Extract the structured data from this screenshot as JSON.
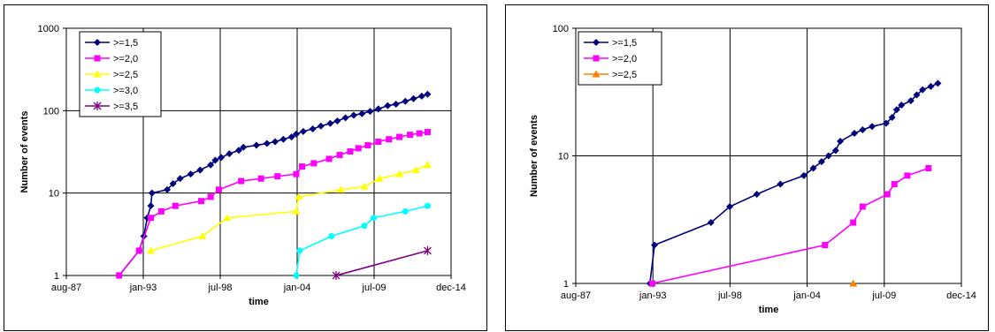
{
  "chart_data": [
    {
      "type": "line",
      "xlabel": "time",
      "ylabel": "Number of events",
      "yscale": "log",
      "ylim": [
        1,
        1000
      ],
      "xlim": [
        "aug-87",
        "dec-14"
      ],
      "x_ticks": [
        "aug-87",
        "jan-93",
        "jul-98",
        "jan-04",
        "jul-09",
        "dec-14"
      ],
      "y_ticks": [
        "1",
        "10",
        "100",
        "1000"
      ],
      "grid": true,
      "legend_position": "top-left",
      "series": [
        {
          "name": ">=1,5",
          "color": "#00007f",
          "marker": "diamond",
          "points": [
            [
              "1991-05-01",
              1
            ],
            [
              "1992-10-01",
              2
            ],
            [
              "1993-02-01",
              3
            ],
            [
              "1993-05-01",
              5
            ],
            [
              "1993-08-01",
              7
            ],
            [
              "1993-09-01",
              10
            ],
            [
              "1994-10-01",
              11
            ],
            [
              "1995-03-01",
              13
            ],
            [
              "1995-09-01",
              15
            ],
            [
              "1996-06-01",
              17
            ],
            [
              "1997-02-01",
              19
            ],
            [
              "1997-11-01",
              22
            ],
            [
              "1998-03-01",
              25
            ],
            [
              "1998-08-01",
              27
            ],
            [
              "1999-03-01",
              30
            ],
            [
              "1999-11-01",
              33
            ],
            [
              "2000-03-01",
              36
            ],
            [
              "2001-02-01",
              38
            ],
            [
              "2001-11-01",
              40
            ],
            [
              "2002-06-01",
              42
            ],
            [
              "2003-01-01",
              45
            ],
            [
              "2003-08-01",
              48
            ],
            [
              "2003-12-01",
              52
            ],
            [
              "2004-06-01",
              56
            ],
            [
              "2005-02-01",
              60
            ],
            [
              "2005-09-01",
              65
            ],
            [
              "2006-05-01",
              70
            ],
            [
              "2006-11-01",
              75
            ],
            [
              "2007-06-01",
              82
            ],
            [
              "2008-01-01",
              88
            ],
            [
              "2008-08-01",
              92
            ],
            [
              "2009-03-01",
              98
            ],
            [
              "2009-10-01",
              105
            ],
            [
              "2010-06-01",
              115
            ],
            [
              "2011-01-01",
              120
            ],
            [
              "2011-09-01",
              130
            ],
            [
              "2012-04-01",
              140
            ],
            [
              "2012-11-01",
              150
            ],
            [
              "2013-04-01",
              158
            ]
          ]
        },
        {
          "name": ">=2,0",
          "color": "#ff00ff",
          "marker": "square",
          "points": [
            [
              "1991-05-01",
              1
            ],
            [
              "1992-10-01",
              2
            ],
            [
              "1993-08-01",
              5
            ],
            [
              "1994-05-01",
              6
            ],
            [
              "1995-05-01",
              7
            ],
            [
              "1997-03-01",
              8
            ],
            [
              "1997-11-01",
              9
            ],
            [
              "1998-06-01",
              11
            ],
            [
              "2000-01-01",
              14
            ],
            [
              "2001-06-01",
              15
            ],
            [
              "2002-08-01",
              16
            ],
            [
              "2003-12-01",
              17
            ],
            [
              "2004-05-01",
              21
            ],
            [
              "2005-03-01",
              23
            ],
            [
              "2006-04-01",
              26
            ],
            [
              "2007-01-01",
              29
            ],
            [
              "2007-10-01",
              32
            ],
            [
              "2008-05-01",
              35
            ],
            [
              "2009-01-01",
              38
            ],
            [
              "2009-10-01",
              42
            ],
            [
              "2010-07-01",
              45
            ],
            [
              "2011-04-01",
              48
            ],
            [
              "2012-01-01",
              51
            ],
            [
              "2012-09-01",
              53
            ],
            [
              "2013-04-01",
              55
            ]
          ]
        },
        {
          "name": ">=2,5",
          "color": "#ffff00",
          "marker": "triangle",
          "points": [
            [
              "1993-08-01",
              2
            ],
            [
              "1997-04-01",
              3
            ],
            [
              "1999-01-01",
              5
            ],
            [
              "2003-12-01",
              6
            ],
            [
              "2004-02-01",
              9
            ],
            [
              "2007-02-01",
              11
            ],
            [
              "2008-10-01",
              12
            ],
            [
              "2009-11-01",
              15
            ],
            [
              "2011-04-01",
              17
            ],
            [
              "2012-06-01",
              19
            ],
            [
              "2013-04-01",
              22
            ]
          ]
        },
        {
          "name": ">=3,0",
          "color": "#00ffff",
          "marker": "circle",
          "points": [
            [
              "2003-12-01",
              1
            ],
            [
              "2004-03-01",
              2
            ],
            [
              "2006-06-01",
              3
            ],
            [
              "2008-10-01",
              4
            ],
            [
              "2009-06-01",
              5
            ],
            [
              "2011-09-01",
              6
            ],
            [
              "2013-04-01",
              7
            ]
          ]
        },
        {
          "name": ">=3,5",
          "color": "#7f007f",
          "marker": "star",
          "points": [
            [
              "2006-10-01",
              1
            ],
            [
              "2013-04-01",
              2
            ]
          ]
        }
      ]
    },
    {
      "type": "line",
      "xlabel": "time",
      "ylabel": "Number of events",
      "yscale": "log",
      "ylim": [
        1,
        100
      ],
      "xlim": [
        "aug-87",
        "dec-14"
      ],
      "x_ticks": [
        "aug-87",
        "jan-93",
        "jul-98",
        "jan-04",
        "jul-09",
        "dec-14"
      ],
      "y_ticks": [
        "1",
        "10",
        "100"
      ],
      "grid": true,
      "legend_position": "top-left",
      "series": [
        {
          "name": ">=1,5",
          "color": "#00007f",
          "marker": "diamond",
          "points": [
            [
              "1992-11-01",
              1
            ],
            [
              "1993-03-01",
              2
            ],
            [
              "1997-03-01",
              3
            ],
            [
              "1998-07-01",
              4
            ],
            [
              "2000-06-01",
              5
            ],
            [
              "2002-02-01",
              6
            ],
            [
              "2003-10-01",
              7
            ],
            [
              "2004-06-01",
              8
            ],
            [
              "2005-01-01",
              9
            ],
            [
              "2005-07-01",
              10
            ],
            [
              "2006-01-01",
              11
            ],
            [
              "2006-05-01",
              13
            ],
            [
              "2007-05-01",
              15
            ],
            [
              "2007-12-01",
              16
            ],
            [
              "2008-08-01",
              17
            ],
            [
              "2009-08-01",
              18
            ],
            [
              "2010-01-01",
              20
            ],
            [
              "2010-05-01",
              23
            ],
            [
              "2010-09-01",
              25
            ],
            [
              "2011-05-01",
              27
            ],
            [
              "2011-10-01",
              30
            ],
            [
              "2012-03-01",
              33
            ],
            [
              "2012-10-01",
              35
            ],
            [
              "2013-04-01",
              37
            ]
          ]
        },
        {
          "name": ">=2,0",
          "color": "#ff00ff",
          "marker": "square",
          "points": [
            [
              "1993-01-01",
              1
            ],
            [
              "2005-04-01",
              2
            ],
            [
              "2007-04-01",
              3
            ],
            [
              "2007-12-01",
              4
            ],
            [
              "2009-09-01",
              5
            ],
            [
              "2010-03-01",
              6
            ],
            [
              "2011-02-01",
              7
            ],
            [
              "2012-08-01",
              8
            ]
          ]
        },
        {
          "name": ">=2,5",
          "color": "#ff8000",
          "marker": "triangle",
          "points": [
            [
              "2007-04-01",
              1
            ]
          ]
        }
      ]
    }
  ]
}
